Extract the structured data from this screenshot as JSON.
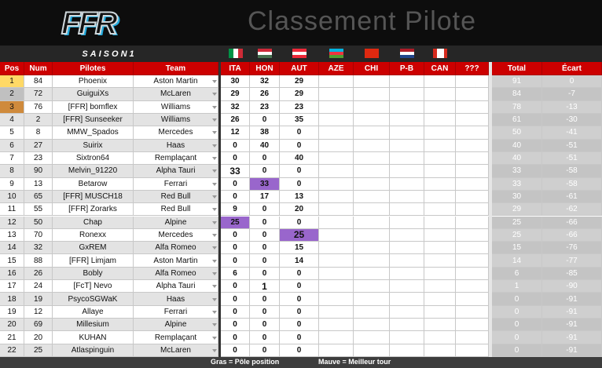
{
  "header": {
    "logo": "FFR",
    "title": "Classement Pilote"
  },
  "table": {
    "season": "SAISON1",
    "columns": [
      "Pos",
      "Num",
      "Pilotes",
      "Team",
      "ITA",
      "HON",
      "AUT",
      "AZE",
      "CHI",
      "P-B",
      "CAN",
      "???",
      "Total",
      "Écart"
    ],
    "rows": [
      {
        "pos": 1,
        "num": 84,
        "pilote": "Phoenix",
        "team": "Aston Martin",
        "points": [
          30,
          32,
          29
        ],
        "total": 91,
        "ecart": 0
      },
      {
        "pos": 2,
        "num": 72,
        "pilote": "GuiguiXs",
        "team": "McLaren",
        "points": [
          29,
          26,
          29
        ],
        "total": 84,
        "ecart": -7
      },
      {
        "pos": 3,
        "num": 76,
        "pilote": "[FFR] bomflex",
        "team": "Williams",
        "points": [
          32,
          23,
          23
        ],
        "total": 78,
        "ecart": -13
      },
      {
        "pos": 4,
        "num": 2,
        "pilote": "[FFR] Sunseeker",
        "team": "Williams",
        "points": [
          26,
          0,
          35
        ],
        "total": 61,
        "ecart": -30
      },
      {
        "pos": 5,
        "num": 8,
        "pilote": "MMW_Spados",
        "team": "Mercedes",
        "points": [
          12,
          38,
          0
        ],
        "total": 50,
        "ecart": -41
      },
      {
        "pos": 6,
        "num": 27,
        "pilote": "Suirix",
        "team": "Haas",
        "points": [
          0,
          40,
          0
        ],
        "total": 40,
        "ecart": -51
      },
      {
        "pos": 7,
        "num": 23,
        "pilote": "Sixtron64",
        "team": "Remplaçant",
        "points": [
          0,
          0,
          40
        ],
        "total": 40,
        "ecart": -51
      },
      {
        "pos": 8,
        "num": 90,
        "pilote": "Melvin_91220",
        "team": "Alpha Tauri",
        "points": [
          33,
          0,
          0
        ],
        "total": 33,
        "ecart": -58
      },
      {
        "pos": 9,
        "num": 13,
        "pilote": "Betarow",
        "team": "Ferrari",
        "points": [
          0,
          33,
          0
        ],
        "total": 33,
        "ecart": -58
      },
      {
        "pos": 10,
        "num": 65,
        "pilote": "[FFR] MUSCH18",
        "team": "Red Bull",
        "points": [
          0,
          17,
          13
        ],
        "total": 30,
        "ecart": -61
      },
      {
        "pos": 11,
        "num": 55,
        "pilote": "[FFR] Zorarks",
        "team": "Red Bull",
        "points": [
          9,
          0,
          20
        ],
        "total": 29,
        "ecart": -62
      },
      {
        "pos": 12,
        "num": 50,
        "pilote": "Chap",
        "team": "Alpine",
        "points": [
          25,
          0,
          0
        ],
        "total": 25,
        "ecart": -66
      },
      {
        "pos": 13,
        "num": 70,
        "pilote": "Ronexx",
        "team": "Mercedes",
        "points": [
          0,
          0,
          25
        ],
        "total": 25,
        "ecart": -66
      },
      {
        "pos": 14,
        "num": 32,
        "pilote": "GxREM",
        "team": "Alfa Romeo",
        "points": [
          0,
          0,
          15
        ],
        "total": 15,
        "ecart": -76
      },
      {
        "pos": 15,
        "num": 88,
        "pilote": "[FFR] Limjam",
        "team": "Aston Martin",
        "points": [
          0,
          0,
          14
        ],
        "total": 14,
        "ecart": -77
      },
      {
        "pos": 16,
        "num": 26,
        "pilote": "Bobly",
        "team": "Alfa Romeo",
        "points": [
          6,
          0,
          0
        ],
        "total": 6,
        "ecart": -85
      },
      {
        "pos": 17,
        "num": 24,
        "pilote": "[FcT] Nevo",
        "team": "Alpha Tauri",
        "points": [
          0,
          1,
          0
        ],
        "total": 1,
        "ecart": -90
      },
      {
        "pos": 18,
        "num": 19,
        "pilote": "PsycoSGWaK",
        "team": "Haas",
        "points": [
          0,
          0,
          0
        ],
        "total": 0,
        "ecart": -91
      },
      {
        "pos": 19,
        "num": 12,
        "pilote": "Allaye",
        "team": "Ferrari",
        "points": [
          0,
          0,
          0
        ],
        "total": 0,
        "ecart": -91
      },
      {
        "pos": 20,
        "num": 69,
        "pilote": "Millesium",
        "team": "Alpine",
        "points": [
          0,
          0,
          0
        ],
        "total": 0,
        "ecart": -91
      },
      {
        "pos": 21,
        "num": 20,
        "pilote": "KUHAN",
        "team": "Remplaçant",
        "points": [
          0,
          0,
          0
        ],
        "total": 0,
        "ecart": -91
      },
      {
        "pos": 22,
        "num": 25,
        "pilote": "Atlaspinguin",
        "team": "McLaren",
        "points": [
          0,
          0,
          0
        ],
        "total": 0,
        "ecart": -91
      }
    ],
    "pole": [
      7,
      16,
      12
    ],
    "fastest_lap": [
      11,
      8,
      12
    ]
  },
  "legend": [
    "Gras = Pôle position",
    "Mauve = Meilleur tour"
  ]
}
